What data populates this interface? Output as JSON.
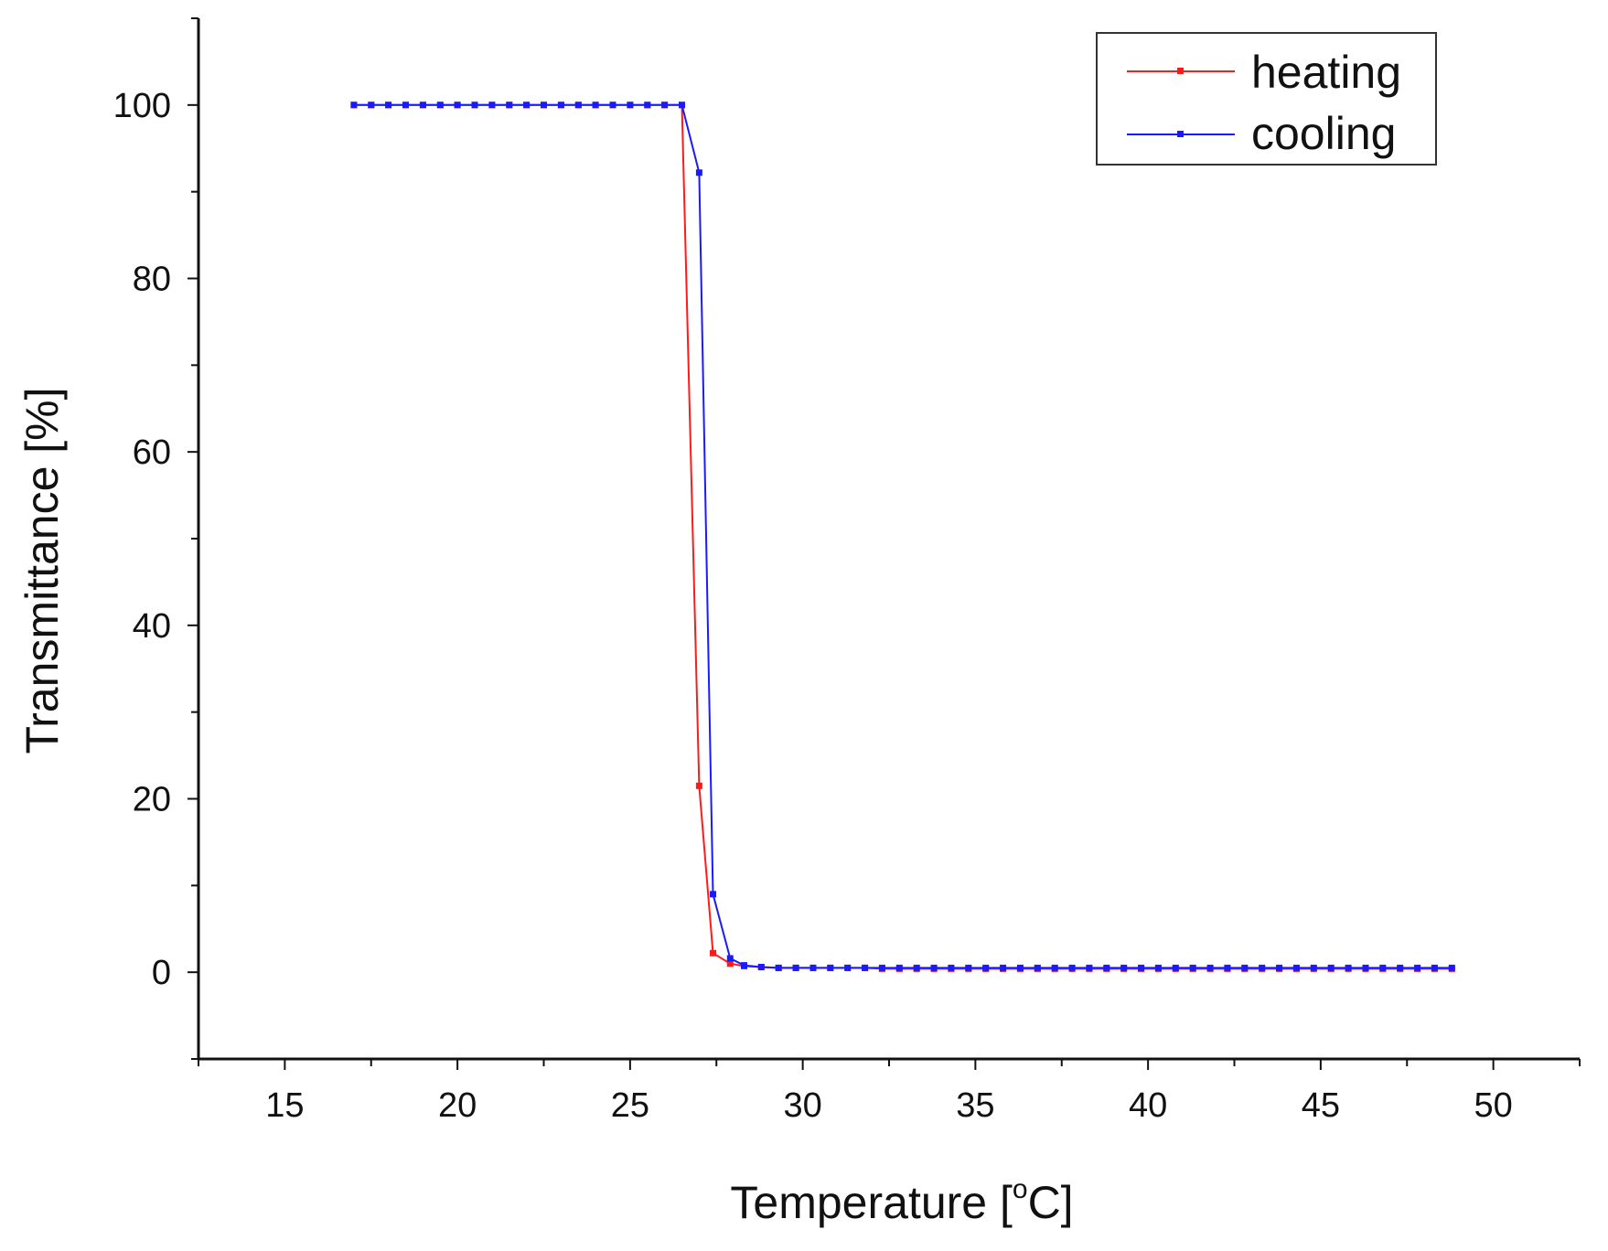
{
  "chart_data": {
    "type": "line",
    "title": "",
    "xlabel_main": "Temperature [",
    "xlabel_sup": "o",
    "xlabel_tail": "C]",
    "ylabel": "Transmittance [%]",
    "xlim": [
      12.5,
      52.5
    ],
    "ylim": [
      -10,
      110
    ],
    "x_ticks": [
      "15",
      "20",
      "25",
      "30",
      "35",
      "40",
      "45",
      "50"
    ],
    "y_ticks": [
      "0",
      "20",
      "40",
      "60",
      "80",
      "100"
    ],
    "legend_position": "top-right",
    "colors": {
      "heating": "#ff1a1a",
      "cooling": "#1a1aff"
    },
    "series": [
      {
        "name": "heating",
        "x": [
          17.0,
          17.5,
          18.0,
          18.5,
          19.0,
          19.5,
          20.0,
          20.5,
          21.0,
          21.5,
          22.0,
          22.5,
          23.0,
          23.5,
          24.0,
          24.5,
          25.0,
          25.5,
          26.0,
          26.5,
          27.0,
          27.4,
          27.9,
          28.3,
          28.8,
          29.3,
          29.8,
          30.3,
          30.8,
          31.3,
          31.8,
          32.3,
          32.8,
          33.3,
          33.8,
          34.3,
          34.8,
          35.3,
          35.8,
          36.3,
          36.8,
          37.3,
          37.8,
          38.3,
          38.8,
          39.3,
          39.8,
          40.3,
          40.8,
          41.3,
          41.8,
          42.3,
          42.8,
          43.3,
          43.8,
          44.3,
          44.8,
          45.3,
          45.8,
          46.3,
          46.8,
          47.3,
          47.8,
          48.3,
          48.8
        ],
        "y": [
          100,
          100,
          100,
          100,
          100,
          100,
          100,
          100,
          100,
          100,
          100,
          100,
          100,
          100,
          100,
          100,
          100,
          100,
          100,
          100,
          21.5,
          2.2,
          1.0,
          0.7,
          0.6,
          0.5,
          0.5,
          0.5,
          0.5,
          0.5,
          0.5,
          0.4,
          0.4,
          0.4,
          0.4,
          0.4,
          0.4,
          0.4,
          0.4,
          0.4,
          0.4,
          0.4,
          0.4,
          0.4,
          0.4,
          0.4,
          0.4,
          0.4,
          0.4,
          0.4,
          0.4,
          0.4,
          0.4,
          0.4,
          0.4,
          0.4,
          0.4,
          0.4,
          0.4,
          0.4,
          0.4,
          0.4,
          0.4,
          0.4,
          0.4
        ]
      },
      {
        "name": "cooling",
        "x": [
          17.0,
          17.5,
          18.0,
          18.5,
          19.0,
          19.5,
          20.0,
          20.5,
          21.0,
          21.5,
          22.0,
          22.5,
          23.0,
          23.5,
          24.0,
          24.5,
          25.0,
          25.5,
          26.0,
          26.5,
          27.0,
          27.4,
          27.9,
          28.3,
          28.8,
          29.3,
          29.8,
          30.3,
          30.8,
          31.3,
          31.8,
          32.3,
          32.8,
          33.3,
          33.8,
          34.3,
          34.8,
          35.3,
          35.8,
          36.3,
          36.8,
          37.3,
          37.8,
          38.3,
          38.8,
          39.3,
          39.8,
          40.3,
          40.8,
          41.3,
          41.8,
          42.3,
          42.8,
          43.3,
          43.8,
          44.3,
          44.8,
          45.3,
          45.8,
          46.3,
          46.8,
          47.3,
          47.8,
          48.3,
          48.8
        ],
        "y": [
          100,
          100,
          100,
          100,
          100,
          100,
          100,
          100,
          100,
          100,
          100,
          100,
          100,
          100,
          100,
          100,
          100,
          100,
          100,
          100,
          92.2,
          9.0,
          1.6,
          0.8,
          0.6,
          0.5,
          0.5,
          0.5,
          0.5,
          0.5,
          0.5,
          0.5,
          0.5,
          0.5,
          0.5,
          0.5,
          0.5,
          0.5,
          0.5,
          0.5,
          0.5,
          0.5,
          0.5,
          0.5,
          0.5,
          0.5,
          0.5,
          0.5,
          0.5,
          0.5,
          0.5,
          0.5,
          0.5,
          0.5,
          0.5,
          0.5,
          0.5,
          0.5,
          0.5,
          0.5,
          0.5,
          0.5,
          0.5,
          0.5,
          0.5
        ]
      }
    ]
  }
}
